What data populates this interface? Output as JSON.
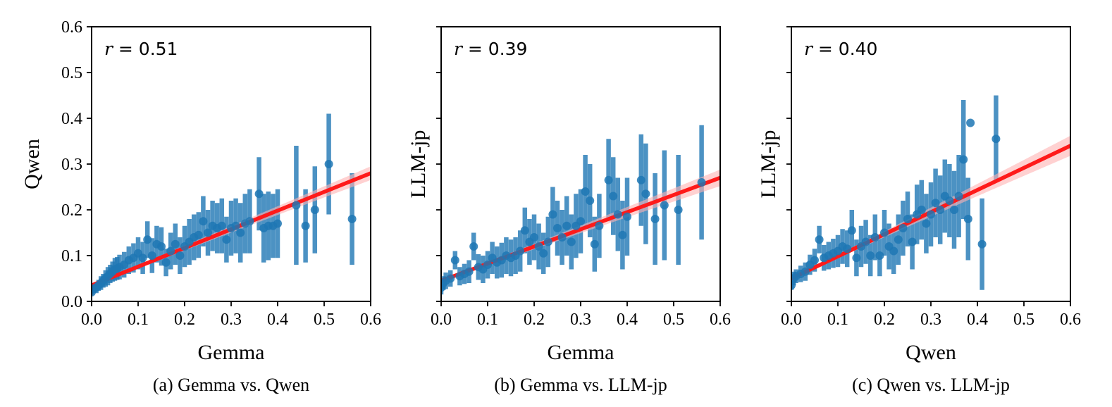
{
  "colors": {
    "points": "#1f77b4",
    "fit_line": "#ff1a1a",
    "band": "#ffb3b3"
  },
  "chart_data": [
    {
      "type": "scatter",
      "caption": "(a) Gemma vs. Qwen",
      "xlabel": "Gemma",
      "ylabel": "Qwen",
      "r_symbol": "r",
      "r_value": "= 0.51",
      "xlim": [
        0.0,
        0.6
      ],
      "ylim": [
        0.0,
        0.6
      ],
      "xticks": [
        "0.0",
        "0.1",
        "0.2",
        "0.3",
        "0.4",
        "0.5",
        "0.6"
      ],
      "yticks": [
        "0.0",
        "0.1",
        "0.2",
        "0.3",
        "0.4",
        "0.5",
        "0.6"
      ],
      "fit": {
        "x0": 0.0,
        "y0": 0.035,
        "x1": 0.6,
        "y1": 0.28,
        "band_end": 0.015
      },
      "points": [
        [
          0.0,
          0.02,
          0.005
        ],
        [
          0.005,
          0.028,
          0.01
        ],
        [
          0.01,
          0.03,
          0.012
        ],
        [
          0.015,
          0.035,
          0.012
        ],
        [
          0.02,
          0.04,
          0.015
        ],
        [
          0.025,
          0.045,
          0.015
        ],
        [
          0.03,
          0.05,
          0.018
        ],
        [
          0.035,
          0.055,
          0.02
        ],
        [
          0.04,
          0.06,
          0.02
        ],
        [
          0.045,
          0.065,
          0.022
        ],
        [
          0.05,
          0.07,
          0.025
        ],
        [
          0.055,
          0.072,
          0.025
        ],
        [
          0.06,
          0.075,
          0.027
        ],
        [
          0.07,
          0.08,
          0.028
        ],
        [
          0.08,
          0.09,
          0.03
        ],
        [
          0.09,
          0.095,
          0.032
        ],
        [
          0.1,
          0.105,
          0.035
        ],
        [
          0.11,
          0.095,
          0.035
        ],
        [
          0.12,
          0.135,
          0.04
        ],
        [
          0.13,
          0.1,
          0.038
        ],
        [
          0.14,
          0.125,
          0.04
        ],
        [
          0.15,
          0.12,
          0.042
        ],
        [
          0.16,
          0.085,
          0.03
        ],
        [
          0.17,
          0.11,
          0.04
        ],
        [
          0.18,
          0.125,
          0.045
        ],
        [
          0.19,
          0.1,
          0.04
        ],
        [
          0.2,
          0.12,
          0.045
        ],
        [
          0.21,
          0.13,
          0.05
        ],
        [
          0.22,
          0.14,
          0.05
        ],
        [
          0.23,
          0.145,
          0.05
        ],
        [
          0.24,
          0.175,
          0.055
        ],
        [
          0.25,
          0.15,
          0.05
        ],
        [
          0.26,
          0.165,
          0.055
        ],
        [
          0.27,
          0.16,
          0.055
        ],
        [
          0.28,
          0.165,
          0.06
        ],
        [
          0.29,
          0.135,
          0.05
        ],
        [
          0.3,
          0.16,
          0.06
        ],
        [
          0.31,
          0.165,
          0.06
        ],
        [
          0.32,
          0.15,
          0.065
        ],
        [
          0.33,
          0.17,
          0.065
        ],
        [
          0.34,
          0.175,
          0.07
        ],
        [
          0.36,
          0.235,
          0.08
        ],
        [
          0.37,
          0.16,
          0.075
        ],
        [
          0.38,
          0.165,
          0.075
        ],
        [
          0.39,
          0.165,
          0.07
        ],
        [
          0.4,
          0.17,
          0.075
        ],
        [
          0.44,
          0.21,
          0.13
        ],
        [
          0.46,
          0.165,
          0.08
        ],
        [
          0.48,
          0.2,
          0.095
        ],
        [
          0.51,
          0.3,
          0.11
        ],
        [
          0.56,
          0.18,
          0.1
        ]
      ]
    },
    {
      "type": "scatter",
      "caption": "(b) Gemma vs. LLM-jp",
      "xlabel": "Gemma",
      "ylabel": "LLM-jp",
      "r_symbol": "r",
      "r_value": "= 0.39",
      "xlim": [
        0.0,
        0.6
      ],
      "ylim": [
        0.0,
        0.6
      ],
      "xticks": [
        "0.0",
        "0.1",
        "0.2",
        "0.3",
        "0.4",
        "0.5",
        "0.6"
      ],
      "yticks": [],
      "fit": {
        "x0": 0.0,
        "y0": 0.045,
        "x1": 0.6,
        "y1": 0.27,
        "band_end": 0.018
      },
      "points": [
        [
          0.0,
          0.03,
          0.015
        ],
        [
          0.005,
          0.04,
          0.015
        ],
        [
          0.01,
          0.045,
          0.018
        ],
        [
          0.02,
          0.05,
          0.018
        ],
        [
          0.03,
          0.09,
          0.02
        ],
        [
          0.04,
          0.055,
          0.02
        ],
        [
          0.05,
          0.06,
          0.022
        ],
        [
          0.06,
          0.065,
          0.025
        ],
        [
          0.07,
          0.12,
          0.03
        ],
        [
          0.08,
          0.075,
          0.028
        ],
        [
          0.09,
          0.07,
          0.03
        ],
        [
          0.1,
          0.08,
          0.03
        ],
        [
          0.11,
          0.095,
          0.035
        ],
        [
          0.12,
          0.085,
          0.035
        ],
        [
          0.13,
          0.09,
          0.038
        ],
        [
          0.14,
          0.1,
          0.04
        ],
        [
          0.15,
          0.095,
          0.04
        ],
        [
          0.16,
          0.1,
          0.04
        ],
        [
          0.17,
          0.11,
          0.045
        ],
        [
          0.18,
          0.155,
          0.05
        ],
        [
          0.19,
          0.13,
          0.05
        ],
        [
          0.2,
          0.14,
          0.05
        ],
        [
          0.21,
          0.12,
          0.05
        ],
        [
          0.22,
          0.105,
          0.045
        ],
        [
          0.23,
          0.13,
          0.055
        ],
        [
          0.24,
          0.19,
          0.06
        ],
        [
          0.25,
          0.16,
          0.06
        ],
        [
          0.26,
          0.14,
          0.06
        ],
        [
          0.27,
          0.165,
          0.065
        ],
        [
          0.28,
          0.13,
          0.06
        ],
        [
          0.29,
          0.165,
          0.07
        ],
        [
          0.3,
          0.175,
          0.07
        ],
        [
          0.31,
          0.24,
          0.08
        ],
        [
          0.32,
          0.22,
          0.08
        ],
        [
          0.33,
          0.125,
          0.06
        ],
        [
          0.34,
          0.165,
          0.07
        ],
        [
          0.36,
          0.265,
          0.09
        ],
        [
          0.37,
          0.23,
          0.085
        ],
        [
          0.38,
          0.19,
          0.08
        ],
        [
          0.39,
          0.145,
          0.075
        ],
        [
          0.4,
          0.185,
          0.085
        ],
        [
          0.43,
          0.265,
          0.1
        ],
        [
          0.44,
          0.235,
          0.11
        ],
        [
          0.46,
          0.18,
          0.1
        ],
        [
          0.48,
          0.21,
          0.12
        ],
        [
          0.51,
          0.2,
          0.12
        ],
        [
          0.56,
          0.26,
          0.125
        ]
      ]
    },
    {
      "type": "scatter",
      "caption": "(c) Qwen vs. LLM-jp",
      "xlabel": "Qwen",
      "ylabel": "LLM-jp",
      "r_symbol": "r",
      "r_value": "= 0.40",
      "xlim": [
        0.0,
        0.6
      ],
      "ylim": [
        0.0,
        0.6
      ],
      "xticks": [
        "0.0",
        "0.1",
        "0.2",
        "0.3",
        "0.4",
        "0.5",
        "0.6"
      ],
      "yticks": [],
      "fit": {
        "x0": 0.0,
        "y0": 0.05,
        "x1": 0.6,
        "y1": 0.34,
        "band_end": 0.022
      },
      "points": [
        [
          0.0,
          0.035,
          0.01
        ],
        [
          0.005,
          0.05,
          0.015
        ],
        [
          0.01,
          0.055,
          0.015
        ],
        [
          0.02,
          0.06,
          0.018
        ],
        [
          0.03,
          0.065,
          0.02
        ],
        [
          0.04,
          0.08,
          0.022
        ],
        [
          0.05,
          0.09,
          0.025
        ],
        [
          0.06,
          0.135,
          0.03
        ],
        [
          0.07,
          0.095,
          0.028
        ],
        [
          0.08,
          0.1,
          0.03
        ],
        [
          0.09,
          0.105,
          0.032
        ],
        [
          0.1,
          0.11,
          0.035
        ],
        [
          0.11,
          0.12,
          0.038
        ],
        [
          0.12,
          0.115,
          0.04
        ],
        [
          0.13,
          0.155,
          0.045
        ],
        [
          0.14,
          0.095,
          0.04
        ],
        [
          0.15,
          0.12,
          0.045
        ],
        [
          0.16,
          0.13,
          0.048
        ],
        [
          0.17,
          0.1,
          0.045
        ],
        [
          0.18,
          0.14,
          0.05
        ],
        [
          0.19,
          0.1,
          0.045
        ],
        [
          0.2,
          0.15,
          0.05
        ],
        [
          0.21,
          0.12,
          0.05
        ],
        [
          0.22,
          0.11,
          0.05
        ],
        [
          0.23,
          0.135,
          0.055
        ],
        [
          0.24,
          0.16,
          0.06
        ],
        [
          0.25,
          0.18,
          0.06
        ],
        [
          0.26,
          0.13,
          0.06
        ],
        [
          0.27,
          0.19,
          0.065
        ],
        [
          0.28,
          0.2,
          0.065
        ],
        [
          0.29,
          0.17,
          0.065
        ],
        [
          0.3,
          0.19,
          0.07
        ],
        [
          0.31,
          0.215,
          0.075
        ],
        [
          0.32,
          0.2,
          0.075
        ],
        [
          0.33,
          0.23,
          0.08
        ],
        [
          0.34,
          0.22,
          0.08
        ],
        [
          0.35,
          0.2,
          0.085
        ],
        [
          0.36,
          0.23,
          0.09
        ],
        [
          0.37,
          0.31,
          0.13
        ],
        [
          0.38,
          0.18,
          0.09
        ],
        [
          0.385,
          0.39,
          0.0
        ],
        [
          0.41,
          0.125,
          0.1
        ],
        [
          0.44,
          0.355,
          0.095
        ]
      ]
    }
  ]
}
